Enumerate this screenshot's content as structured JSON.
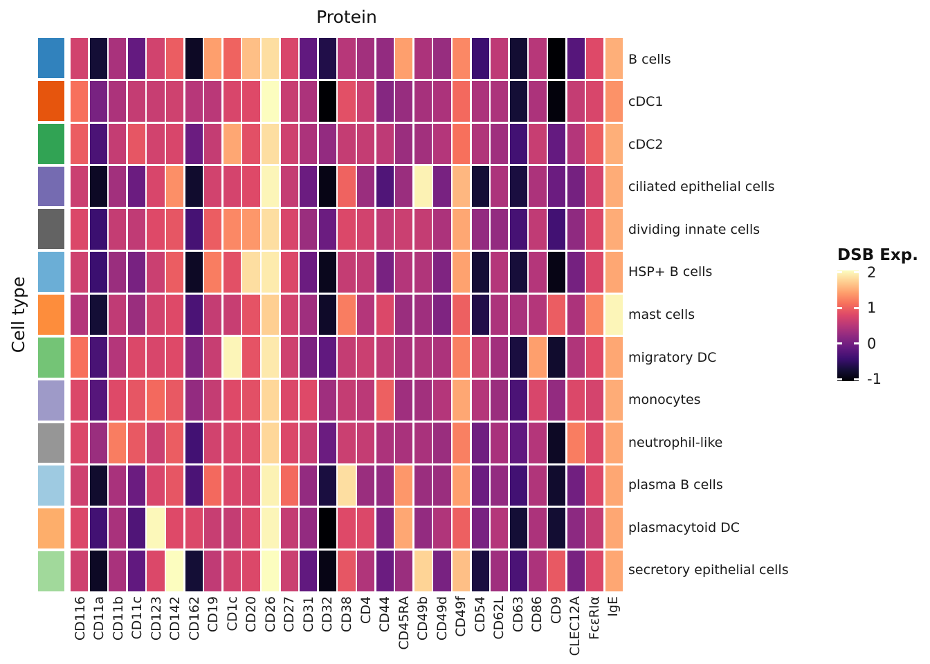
{
  "title": "Protein",
  "y_axis_label": "Cell type",
  "legend": {
    "title": "DSB Exp.",
    "ticks": [
      {
        "label": "2",
        "value": 2
      },
      {
        "label": "1",
        "value": 1
      },
      {
        "label": "0",
        "value": 0
      },
      {
        "label": "-1",
        "value": -1
      }
    ],
    "bar_range": [
      -1.05,
      2.05
    ]
  },
  "chart_data": {
    "type": "heatmap",
    "title": "Protein",
    "xlabel": "Protein",
    "ylabel": "Cell type",
    "legend_title": "DSB Exp.",
    "value_range": [
      -1,
      2
    ],
    "colormap": "magma",
    "colormap_stops": [
      "#000004",
      "#140e36",
      "#3b0f70",
      "#641a80",
      "#8c2981",
      "#b73779",
      "#de4968",
      "#f7705c",
      "#fe9f6d",
      "#fecf92",
      "#fcfdbf"
    ],
    "columns": [
      "CD116",
      "CD11a",
      "CD11b",
      "CD11c",
      "CD123",
      "CD142",
      "CD162",
      "CD19",
      "CD1c",
      "CD20",
      "CD26",
      "CD27",
      "CD31",
      "CD32",
      "CD38",
      "CD4",
      "CD44",
      "CD45RA",
      "CD49b",
      "CD49d",
      "CD49f",
      "CD54",
      "CD62L",
      "CD63",
      "CD86",
      "CD9",
      "CLEC12A",
      "FcεRIα",
      "IgE"
    ],
    "rows": [
      "B cells",
      "cDC1",
      "cDC2",
      "ciliated epithelial cells",
      "dividing innate cells",
      "HSP+ B cells",
      "mast cells",
      "migratory DC",
      "monocytes",
      "neutrophil-like",
      "plasma B cells",
      "plasmacytoid DC",
      "secretory epithelial cells"
    ],
    "row_annotation_colors": [
      "#3182bd",
      "#e6550d",
      "#31a354",
      "#756bb1",
      "#636363",
      "#6baed6",
      "#fd8d3c",
      "#74c476",
      "#9e9ac8",
      "#969696",
      "#9ecae1",
      "#fdae6b",
      "#a1d99b"
    ],
    "values": [
      [
        0.7,
        -0.7,
        0.4,
        -0.1,
        0.7,
        0.95,
        -0.8,
        1.4,
        1.0,
        1.6,
        1.8,
        0.75,
        -0.12,
        -0.6,
        0.5,
        0.35,
        0.25,
        1.4,
        0.42,
        0.28,
        1.25,
        -0.4,
        0.55,
        -0.72,
        0.5,
        -1.0,
        -0.2,
        0.8,
        1.5
      ],
      [
        1.1,
        0.05,
        0.42,
        0.6,
        0.62,
        0.68,
        0.5,
        0.52,
        0.75,
        0.8,
        2.0,
        0.62,
        0.42,
        -1.0,
        0.85,
        0.65,
        0.15,
        0.28,
        0.38,
        0.42,
        1.05,
        0.42,
        0.42,
        -0.7,
        0.42,
        -0.95,
        0.6,
        0.75,
        1.32
      ],
      [
        0.95,
        -0.28,
        0.6,
        0.9,
        0.7,
        0.75,
        -0.05,
        0.6,
        1.45,
        0.85,
        1.8,
        0.68,
        0.42,
        0.25,
        0.6,
        0.6,
        0.55,
        0.3,
        0.35,
        0.48,
        1.1,
        0.45,
        0.33,
        -0.35,
        0.62,
        -0.1,
        0.48,
        0.95,
        1.5
      ],
      [
        0.65,
        -0.8,
        0.35,
        -0.05,
        0.75,
        1.3,
        -0.75,
        0.7,
        0.72,
        0.8,
        1.95,
        0.6,
        -0.05,
        -0.9,
        1.0,
        0.3,
        -0.25,
        0.3,
        1.93,
        0.05,
        1.55,
        -0.7,
        0.42,
        -0.65,
        0.42,
        -0.05,
        0.03,
        0.72,
        1.48
      ],
      [
        0.78,
        -0.4,
        0.6,
        0.57,
        0.8,
        0.9,
        -0.32,
        0.95,
        1.25,
        1.35,
        1.8,
        0.75,
        0.3,
        -0.05,
        0.78,
        0.7,
        0.57,
        0.65,
        0.6,
        0.42,
        1.45,
        0.25,
        0.25,
        -0.32,
        0.57,
        -0.35,
        0.22,
        0.78,
        1.48
      ],
      [
        0.68,
        -0.4,
        0.3,
        0.05,
        0.65,
        0.95,
        -0.8,
        1.18,
        0.85,
        1.8,
        1.88,
        0.78,
        -0.05,
        -0.85,
        0.6,
        0.57,
        0.05,
        0.48,
        0.45,
        0.1,
        1.42,
        -0.7,
        0.48,
        -0.68,
        0.48,
        -0.9,
        0.03,
        0.78,
        1.45
      ],
      [
        0.48,
        -0.7,
        0.57,
        0.3,
        0.7,
        0.8,
        -0.28,
        0.6,
        0.62,
        0.88,
        1.7,
        0.7,
        0.33,
        -0.78,
        1.18,
        0.48,
        0.78,
        0.3,
        0.33,
        0.1,
        0.98,
        -0.6,
        0.42,
        0.4,
        0.48,
        0.95,
        0.42,
        1.25,
        1.95
      ],
      [
        1.1,
        -0.3,
        0.48,
        0.78,
        0.75,
        0.8,
        0.1,
        0.62,
        1.95,
        0.88,
        1.87,
        0.68,
        0.08,
        -0.12,
        0.6,
        0.65,
        0.57,
        0.42,
        0.45,
        0.42,
        1.2,
        0.57,
        0.35,
        -0.65,
        1.4,
        -0.75,
        0.45,
        0.8,
        1.45
      ],
      [
        0.78,
        -0.2,
        0.8,
        0.9,
        1.05,
        0.92,
        0.25,
        0.6,
        0.8,
        0.85,
        1.75,
        0.78,
        0.8,
        0.33,
        0.6,
        0.53,
        0.98,
        0.33,
        0.35,
        0.48,
        1.45,
        0.48,
        0.3,
        -0.28,
        0.75,
        0.25,
        0.78,
        0.72,
        1.48
      ],
      [
        0.78,
        0.3,
        1.18,
        0.92,
        0.65,
        0.95,
        -0.35,
        0.7,
        0.75,
        0.78,
        1.75,
        0.78,
        0.62,
        -0.05,
        0.65,
        0.6,
        0.42,
        0.4,
        0.4,
        0.3,
        1.2,
        -0.02,
        0.4,
        -0.12,
        0.48,
        -0.8,
        1.18,
        0.78,
        1.45
      ],
      [
        0.68,
        -0.75,
        0.4,
        -0.05,
        0.75,
        0.9,
        -0.28,
        1.05,
        0.75,
        0.75,
        1.93,
        1.05,
        0.25,
        -0.65,
        1.8,
        0.3,
        0.25,
        1.35,
        0.3,
        0.3,
        1.4,
        -0.05,
        0.25,
        -0.35,
        0.45,
        -0.75,
        0.0,
        0.78,
        1.45
      ],
      [
        0.78,
        -0.35,
        0.4,
        -0.25,
        1.97,
        0.8,
        0.78,
        0.62,
        0.6,
        0.78,
        1.95,
        0.6,
        0.25,
        -1.0,
        0.8,
        0.78,
        0.1,
        1.45,
        0.25,
        0.45,
        0.98,
        0.05,
        0.48,
        -0.7,
        0.42,
        -0.72,
        0.2,
        0.6,
        1.45
      ],
      [
        0.68,
        -0.8,
        0.4,
        -0.12,
        0.78,
        2.0,
        -0.7,
        0.57,
        0.7,
        0.78,
        2.0,
        0.65,
        -0.12,
        -0.9,
        0.9,
        0.45,
        -0.05,
        0.3,
        1.73,
        0.05,
        1.6,
        -0.65,
        0.33,
        -0.28,
        0.42,
        0.92,
        0.05,
        0.78,
        1.45
      ]
    ]
  }
}
